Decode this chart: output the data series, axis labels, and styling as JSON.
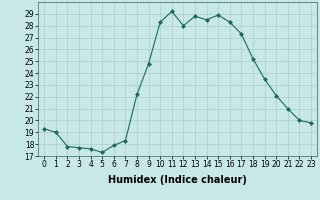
{
  "x": [
    0,
    1,
    2,
    3,
    4,
    5,
    6,
    7,
    8,
    9,
    10,
    11,
    12,
    13,
    14,
    15,
    16,
    17,
    18,
    19,
    20,
    21,
    22,
    23
  ],
  "y": [
    19.3,
    19.0,
    17.8,
    17.7,
    17.6,
    17.3,
    17.9,
    18.3,
    22.2,
    24.8,
    28.3,
    29.2,
    28.0,
    28.8,
    28.5,
    28.9,
    28.3,
    27.3,
    25.2,
    23.5,
    22.1,
    21.0,
    20.0,
    19.8
  ],
  "line_color": "#1a6b5a",
  "marker": "D",
  "marker_size": 2.0,
  "bg_color": "#c8e8e8",
  "grid_color": "#aacccc",
  "xlabel": "Humidex (Indice chaleur)",
  "ylim": [
    17,
    30
  ],
  "xlim": [
    -0.5,
    23.5
  ],
  "yticks": [
    17,
    18,
    19,
    20,
    21,
    22,
    23,
    24,
    25,
    26,
    27,
    28,
    29
  ],
  "xticks": [
    0,
    1,
    2,
    3,
    4,
    5,
    6,
    7,
    8,
    9,
    10,
    11,
    12,
    13,
    14,
    15,
    16,
    17,
    18,
    19,
    20,
    21,
    22,
    23
  ],
  "tick_fontsize": 5.5,
  "xlabel_fontsize": 7.0,
  "xlabel_fontweight": "bold"
}
